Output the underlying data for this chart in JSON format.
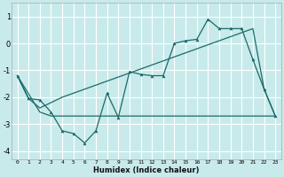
{
  "title": "",
  "xlabel": "Humidex (Indice chaleur)",
  "bg_color": "#c8eaea",
  "grid_color": "#ffffff",
  "line_color": "#1a6b6b",
  "ylim": [
    -4.3,
    1.5
  ],
  "xlim": [
    -0.5,
    23.5
  ],
  "yticks": [
    -4,
    -3,
    -2,
    -1,
    0,
    1
  ],
  "xticks": [
    0,
    1,
    2,
    3,
    4,
    5,
    6,
    7,
    8,
    9,
    10,
    11,
    12,
    13,
    14,
    15,
    16,
    17,
    18,
    19,
    20,
    21,
    22,
    23
  ],
  "series1_x": [
    0,
    1,
    2,
    3,
    4,
    5,
    6,
    7,
    8,
    9,
    10,
    11,
    12,
    13,
    14,
    15,
    16,
    17,
    18,
    19,
    20,
    21,
    22,
    23
  ],
  "series1_y": [
    -1.2,
    -2.05,
    -2.1,
    -2.55,
    -3.25,
    -3.35,
    -3.7,
    -3.25,
    -1.85,
    -2.75,
    -1.05,
    -1.15,
    -1.2,
    -1.2,
    0.0,
    0.1,
    0.15,
    0.9,
    0.55,
    0.55,
    0.55,
    -0.6,
    -1.7,
    -2.7
  ],
  "series2_x": [
    0,
    2,
    3,
    4,
    5,
    6,
    7,
    8,
    9,
    10,
    11,
    12,
    13,
    14,
    15,
    16,
    17,
    18,
    19,
    20,
    21,
    22,
    23
  ],
  "series2_y": [
    -1.2,
    -2.55,
    -2.7,
    -2.7,
    -2.7,
    -2.7,
    -2.7,
    -2.7,
    -2.7,
    -2.7,
    -2.7,
    -2.7,
    -2.7,
    -2.7,
    -2.7,
    -2.7,
    -2.7,
    -2.7,
    -2.7,
    -2.7,
    -2.7,
    -2.7,
    -2.7
  ],
  "series3_x": [
    0,
    1,
    2,
    3,
    4,
    5,
    6,
    7,
    8,
    9,
    10,
    11,
    12,
    13,
    14,
    15,
    16,
    17,
    18,
    19,
    20,
    21,
    22,
    23
  ],
  "series3_y": [
    -1.2,
    -2.05,
    -2.4,
    -2.2,
    -2.0,
    -1.85,
    -1.7,
    -1.55,
    -1.4,
    -1.25,
    -1.1,
    -0.95,
    -0.8,
    -0.65,
    -0.5,
    -0.35,
    -0.2,
    -0.05,
    0.1,
    0.25,
    0.4,
    0.55,
    -1.7,
    -2.7
  ]
}
